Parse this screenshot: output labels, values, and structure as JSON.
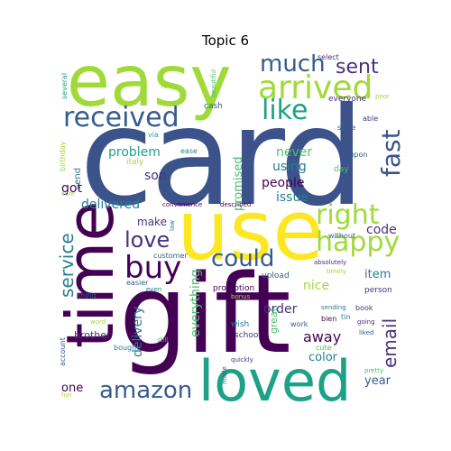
{
  "title": "Topic 6",
  "words": {
    "card": "card",
    "easy": "easy",
    "gift": "gift",
    "use": "use",
    "time": "time",
    "loved": "loved",
    "arrived": "arrived",
    "received": "received",
    "much": "much",
    "sent": "sent",
    "like": "like",
    "fast": "fast",
    "buy": "buy",
    "right": "right",
    "happy": "happy",
    "love": "love",
    "could": "could",
    "amazon": "amazon",
    "service": "service",
    "email": "email",
    "problem": "problem",
    "son": "son",
    "delivered": "delivered",
    "promised": "promised",
    "never": "never",
    "using": "using",
    "people": "people",
    "issue": "issue",
    "code": "code",
    "got": "got",
    "make": "make",
    "everything": "everything",
    "delivery": "delivery",
    "order": "order",
    "away": "away",
    "nice": "nice",
    "item": "item",
    "color": "color",
    "year": "year",
    "one": "one",
    "great": "great",
    "brother": "brother",
    "promotion": "promotion",
    "wish": "wish",
    "school": "school",
    "upload": "upload",
    "select": "select",
    "everyone": "everyone",
    "cash": "cash",
    "able": "able",
    "store": "store",
    "coupon": "coupon",
    "day": "day",
    "send": "send",
    "several": "several",
    "fee": "fee",
    "beautiful": "beautiful",
    "via": "via",
    "ease": "ease",
    "italy": "italy",
    "birthday": "birthday",
    "sure": "sure",
    "convenience": "convenience",
    "described": "described",
    "law": "law",
    "without": "without",
    "absolutely": "absolutely",
    "timely": "timely",
    "customer": "customer",
    "easier": "easier",
    "even": "even",
    "thing": "thing",
    "bonus": "bonus",
    "person": "person",
    "sending": "sending",
    "book": "book",
    "bien": "bien",
    "tin": "tin",
    "going": "going",
    "liked": "liked",
    "word": "word",
    "still": "still",
    "cute": "cute",
    "work": "work",
    "account": "account",
    "bought": "bought",
    "quickly": "quickly",
    "made": "made",
    "pretty": "pretty",
    "fun": "fun",
    "poor": "poor"
  },
  "colors": {
    "dark_purple": "#440154",
    "purple": "#46327e",
    "indigo": "#3b528b",
    "blue": "#365c8d",
    "teal_blue": "#277f8e",
    "teal": "#1fa187",
    "green": "#4ac16d",
    "lime": "#a0da39",
    "yellow": "#fde725"
  }
}
